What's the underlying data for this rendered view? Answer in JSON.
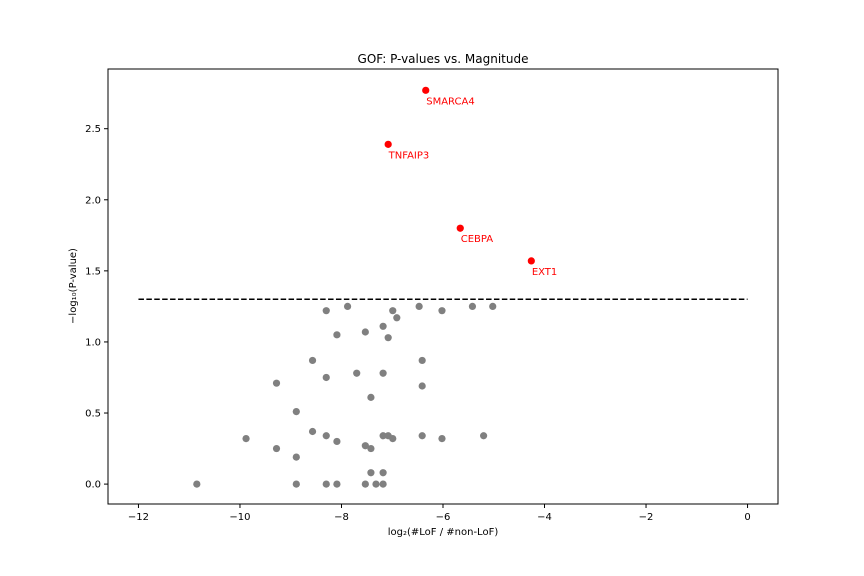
{
  "chart_data": {
    "type": "scatter",
    "title": "GOF: P-values vs. Magnitude",
    "xlabel": "log₂(#LoF / #non-LoF)",
    "ylabel": "−log₁₀(P-value)",
    "xlim": [
      -12.6,
      0.6
    ],
    "ylim": [
      -0.14,
      2.92
    ],
    "xticks": [
      -12,
      -10,
      -8,
      -6,
      -4,
      -2,
      0
    ],
    "xtick_labels": [
      "−12",
      "−10",
      "−8",
      "−6",
      "−4",
      "−2",
      "0"
    ],
    "yticks": [
      0.0,
      0.5,
      1.0,
      1.5,
      2.0,
      2.5
    ],
    "ytick_labels": [
      "0.0",
      "0.5",
      "1.0",
      "1.5",
      "2.0",
      "2.5"
    ],
    "grid": false,
    "threshold": {
      "y": 1.3,
      "x_start": -12,
      "x_end": 0,
      "style": "dashed",
      "color": "#000000"
    },
    "series": [
      {
        "color": "#808080",
        "points": [
          [
            -10.85,
            0.0
          ],
          [
            -9.88,
            0.32
          ],
          [
            -9.28,
            0.71
          ],
          [
            -9.28,
            0.25
          ],
          [
            -8.89,
            0.51
          ],
          [
            -8.89,
            0.19
          ],
          [
            -8.89,
            0.0
          ],
          [
            -8.57,
            0.87
          ],
          [
            -8.57,
            0.37
          ],
          [
            -8.3,
            1.22
          ],
          [
            -8.3,
            0.75
          ],
          [
            -8.3,
            0.34
          ],
          [
            -8.3,
            0.0
          ],
          [
            -8.09,
            1.05
          ],
          [
            -8.09,
            0.3
          ],
          [
            -8.09,
            0.0
          ],
          [
            -7.88,
            1.25
          ],
          [
            -7.7,
            0.78
          ],
          [
            -7.53,
            1.07
          ],
          [
            -7.53,
            0.27
          ],
          [
            -7.53,
            0.0
          ],
          [
            -7.42,
            0.61
          ],
          [
            -7.42,
            0.25
          ],
          [
            -7.42,
            0.08
          ],
          [
            -7.32,
            0.0
          ],
          [
            -7.18,
            1.11
          ],
          [
            -7.18,
            0.78
          ],
          [
            -7.18,
            0.34
          ],
          [
            -7.18,
            0.08
          ],
          [
            -7.18,
            0.0
          ],
          [
            -7.08,
            1.03
          ],
          [
            -7.08,
            0.34
          ],
          [
            -6.99,
            1.22
          ],
          [
            -6.99,
            0.32
          ],
          [
            -6.91,
            1.17
          ],
          [
            -6.47,
            1.25
          ],
          [
            -6.41,
            0.87
          ],
          [
            -6.41,
            0.69
          ],
          [
            -6.41,
            0.34
          ],
          [
            -6.02,
            1.22
          ],
          [
            -6.02,
            0.32
          ],
          [
            -5.42,
            1.25
          ],
          [
            -5.2,
            0.34
          ],
          [
            -5.02,
            1.25
          ]
        ]
      },
      {
        "color": "#ff0000",
        "points": [
          [
            -6.34,
            2.77,
            "SMARCA4"
          ],
          [
            -7.08,
            2.39,
            "TNFAIP3"
          ],
          [
            -5.66,
            1.8,
            "CEBPA"
          ],
          [
            -4.26,
            1.57,
            "EXT1"
          ]
        ]
      }
    ]
  }
}
